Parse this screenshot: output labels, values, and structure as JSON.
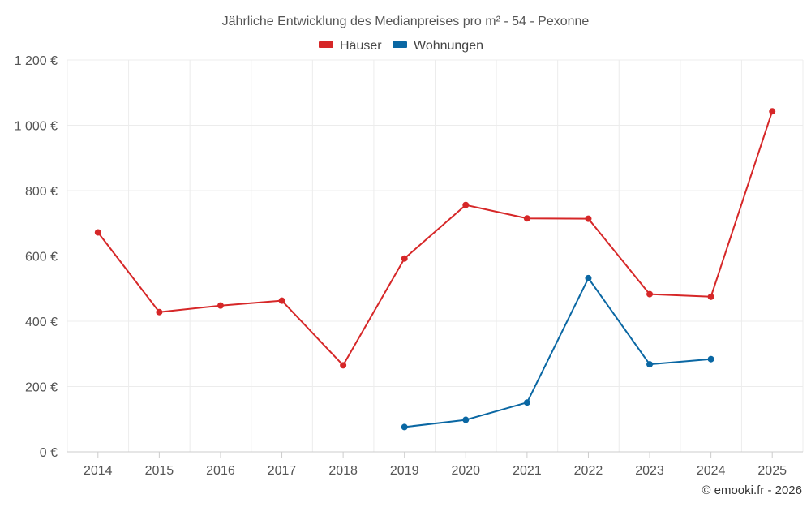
{
  "chart_data": {
    "type": "line",
    "title": "Jährliche Entwicklung des Medianpreises pro m² - 54 - Pexonne",
    "categories": [
      "2014",
      "2015",
      "2016",
      "2017",
      "2018",
      "2019",
      "2020",
      "2021",
      "2022",
      "2023",
      "2024",
      "2025"
    ],
    "series": [
      {
        "name": "Häuser",
        "color": "#d62728",
        "values": [
          672,
          428,
          448,
          463,
          265,
          592,
          756,
          715,
          714,
          483,
          475,
          1043
        ]
      },
      {
        "name": "Wohnungen",
        "color": "#0a67a3",
        "values": [
          null,
          null,
          null,
          null,
          null,
          76,
          98,
          151,
          532,
          268,
          284,
          null
        ]
      }
    ],
    "ylim": [
      0,
      1200
    ],
    "yticks": [
      0,
      200,
      400,
      600,
      800,
      1000,
      1200
    ],
    "ytick_labels": [
      "0 €",
      "200 €",
      "400 €",
      "600 €",
      "800 €",
      "1 000 €",
      "1 200 €"
    ],
    "grid": true,
    "legend": "top-center",
    "xlabel": "",
    "ylabel": ""
  },
  "credit": "© emooki.fr - 2026"
}
